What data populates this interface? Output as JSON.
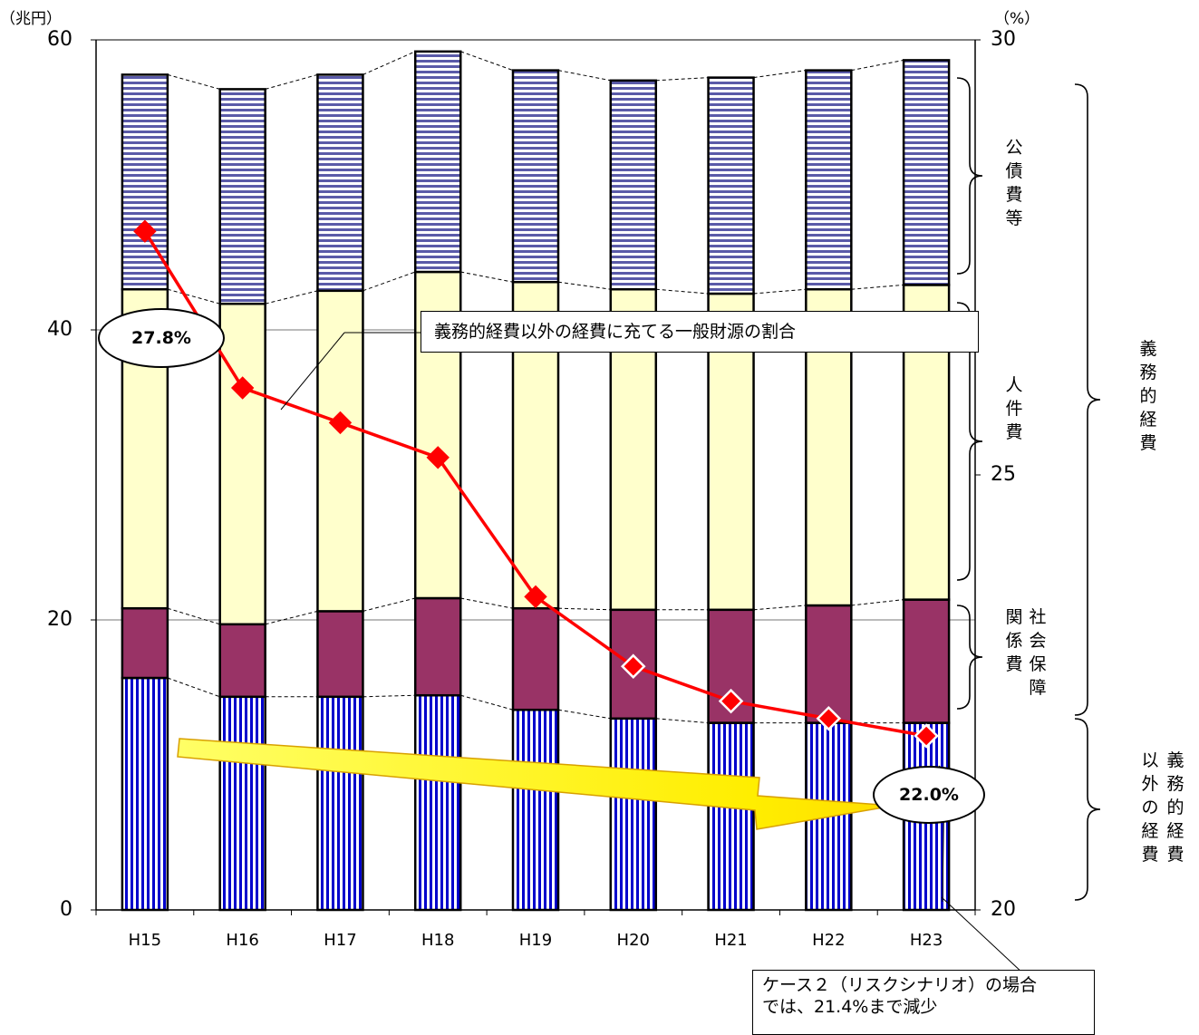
{
  "chart_data": {
    "type": "bar",
    "stacked": true,
    "categories": [
      "H15",
      "H16",
      "H17",
      "H18",
      "H19",
      "H20",
      "H21",
      "H22",
      "H23"
    ],
    "series": [
      {
        "values": [
          16.0,
          14.7,
          14.7,
          14.8,
          13.8,
          13.2,
          12.9,
          12.9,
          12.9
        ],
        "color": "#0000cc",
        "pattern": "vertical-stripes"
      },
      {
        "name": "社会保障関係費",
        "values": [
          4.8,
          5.0,
          5.9,
          6.7,
          7.0,
          7.5,
          7.8,
          8.1,
          8.5
        ],
        "color": "#993366"
      },
      {
        "name": "人件費",
        "values": [
          22.0,
          22.1,
          22.1,
          22.5,
          22.5,
          22.1,
          21.8,
          21.8,
          21.7
        ],
        "color": "#ffffcc"
      },
      {
        "name": "公債費等",
        "values": [
          14.8,
          14.8,
          14.9,
          15.2,
          14.6,
          14.4,
          14.9,
          15.1,
          15.5
        ],
        "color": "#e8e8f8",
        "pattern": "horizontal-stripes"
      }
    ],
    "line": {
      "name": "義務的経費以外の経費に充てる一般財源の割合",
      "values": [
        27.8,
        26.0,
        25.6,
        25.2,
        23.6,
        22.8,
        22.4,
        22.2,
        22.0
      ],
      "color": "#ff0000",
      "axis": "right"
    },
    "y_left": {
      "unit": "（兆円）",
      "min": 0,
      "max": 60,
      "ticks": [
        "0",
        "20",
        "40",
        "60"
      ]
    },
    "y_right": {
      "unit": "（%）",
      "min": 20,
      "max": 30,
      "ticks": [
        "20",
        "25",
        "30"
      ]
    },
    "grid": "horizontal at 20 and 40"
  },
  "labels": {
    "start_value": "27.8%",
    "end_value": "22.0%",
    "line_legend": "義務的経費以外の経費に充てる一般財源の割合",
    "kousai": "公債費等",
    "jinken": "人件費",
    "shakai_col1": "関係費",
    "shakai_col2": "社会保障",
    "gimu": "義務的経費",
    "igai_col1": "以外の経費",
    "igai_col2": "義務的経費",
    "note_line1": "ケース２（リスクシナリオ）の場合",
    "note_line2": "では、21.4%まで減少"
  }
}
